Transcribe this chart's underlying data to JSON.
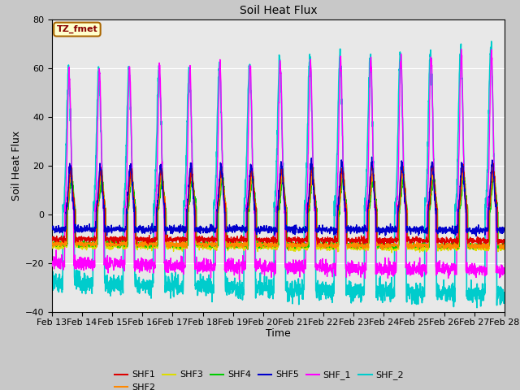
{
  "title": "Soil Heat Flux",
  "xlabel": "Time",
  "ylabel": "Soil Heat Flux",
  "xlim_days": [
    13,
    28
  ],
  "ylim": [
    -40,
    80
  ],
  "yticks": [
    -40,
    -20,
    0,
    20,
    40,
    60,
    80
  ],
  "xtick_labels": [
    "Feb 13",
    "Feb 14",
    "Feb 15",
    "Feb 16",
    "Feb 17",
    "Feb 18",
    "Feb 19",
    "Feb 20",
    "Feb 21",
    "Feb 22",
    "Feb 23",
    "Feb 24",
    "Feb 25",
    "Feb 26",
    "Feb 27",
    "Feb 28"
  ],
  "series": {
    "SHF1": {
      "color": "#dd0000",
      "lw": 1.0
    },
    "SHF2": {
      "color": "#ff8800",
      "lw": 1.0
    },
    "SHF3": {
      "color": "#dddd00",
      "lw": 1.0
    },
    "SHF4": {
      "color": "#00cc00",
      "lw": 1.0
    },
    "SHF5": {
      "color": "#0000cc",
      "lw": 1.0
    },
    "SHF_1": {
      "color": "#ff00ff",
      "lw": 1.0
    },
    "SHF_2": {
      "color": "#00cccc",
      "lw": 1.2
    }
  },
  "annotation_text": "TZ_fmet",
  "annotation_color": "#880000",
  "annotation_bg": "#ffffcc",
  "annotation_border": "#aa6600",
  "fig_bg": "#c8c8c8",
  "plot_bg": "#e8e8e8"
}
